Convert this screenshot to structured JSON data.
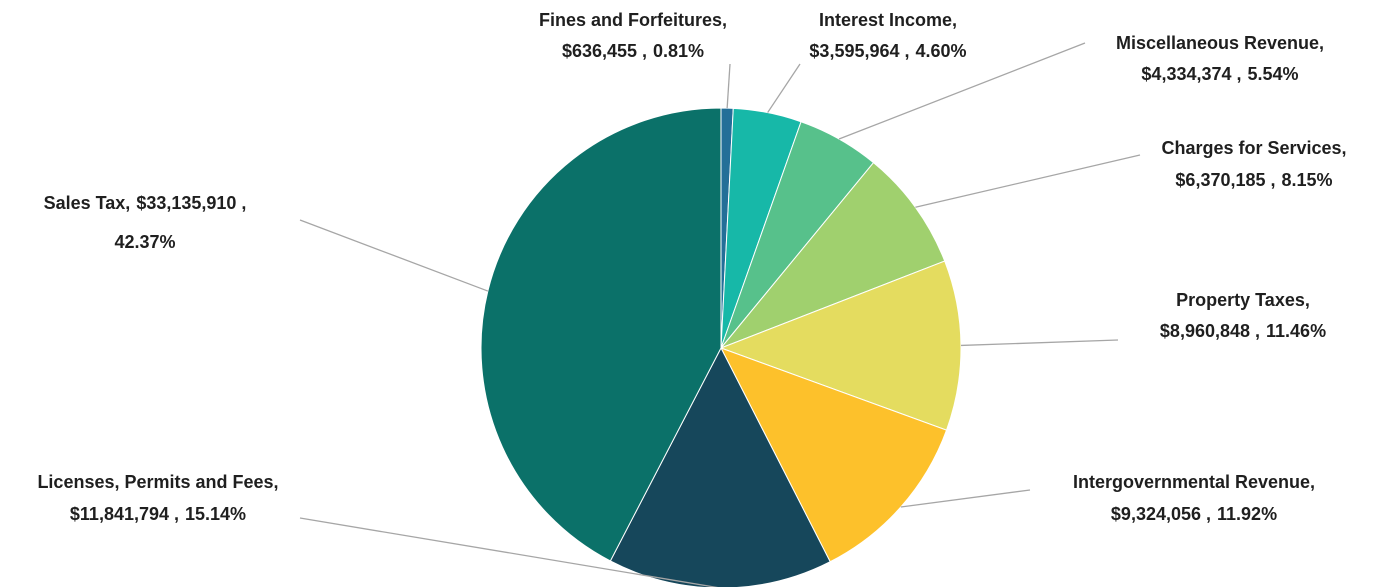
{
  "chart_data": {
    "type": "pie",
    "categories": [
      "Fines and Forfeitures,",
      "Interest Income,",
      "Miscellaneous Revenue,",
      "Charges for Services,",
      "Property Taxes,",
      "Intergovernmental Revenue,",
      "Licenses, Permits and Fees,",
      "Sales Tax,"
    ],
    "values": [
      636455,
      3595964,
      4334374,
      6370185,
      8960848,
      9324056,
      11841794,
      33135910
    ],
    "value_labels": [
      "$636,455 ,",
      "$3,595,964 ,",
      "$4,334,374 ,",
      "$6,370,185 ,",
      "$8,960,848 ,",
      "$9,324,056 ,",
      "$11,841,794 ,",
      "$33,135,910 ,"
    ],
    "percentages": [
      0.81,
      4.6,
      5.54,
      8.15,
      11.46,
      11.92,
      15.14,
      42.37
    ],
    "percentage_labels": [
      "0.81%",
      "4.60%",
      "5.54%",
      "8.15%",
      "11.46%",
      "11.92%",
      "15.14%",
      "42.37%"
    ],
    "colors": [
      "#236f98",
      "#17b8a8",
      "#57c18b",
      "#a0d06e",
      "#e4dc5f",
      "#fdc12b",
      "#16475b",
      "#0b7169"
    ]
  }
}
